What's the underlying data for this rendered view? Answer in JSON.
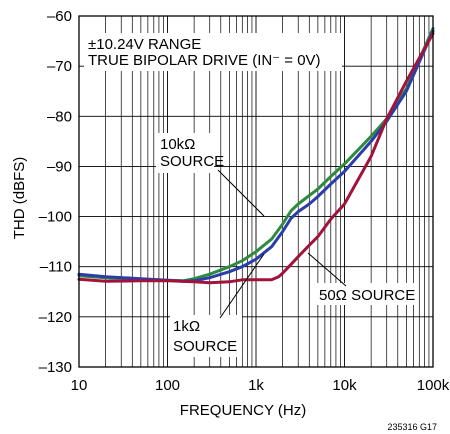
{
  "chart_data": {
    "type": "line",
    "xlabel": "FREQUENCY (Hz)",
    "ylabel": "THD (dBFS)",
    "x_scale": "log",
    "xlim": [
      10,
      100000
    ],
    "ylim": [
      -130,
      -60
    ],
    "grid": true,
    "x_ticks": [
      {
        "value": 10,
        "label": "10"
      },
      {
        "value": 100,
        "label": "100"
      },
      {
        "value": 1000,
        "label": "1k"
      },
      {
        "value": 10000,
        "label": "10k"
      },
      {
        "value": 100000,
        "label": "100k"
      }
    ],
    "y_ticks": [
      {
        "value": -60,
        "label": "–60"
      },
      {
        "value": -70,
        "label": "–70"
      },
      {
        "value": -80,
        "label": "–80"
      },
      {
        "value": -90,
        "label": "–90"
      },
      {
        "value": -100,
        "label": "–100"
      },
      {
        "value": -110,
        "label": "–110"
      },
      {
        "value": -120,
        "label": "–120"
      },
      {
        "value": -130,
        "label": "–130"
      }
    ],
    "box_text": [
      "±10.24V RANGE",
      "TRUE BIPOLAR DRIVE (IN⁻ = 0V)"
    ],
    "series": [
      {
        "color": "#2e8b3e",
        "points": [
          [
            10,
            -111.8
          ],
          [
            20,
            -112.2
          ],
          [
            50,
            -112.5
          ],
          [
            100,
            -112.7
          ],
          [
            150,
            -112.8
          ],
          [
            200,
            -112.4
          ],
          [
            300,
            -111.5
          ],
          [
            500,
            -110.0
          ],
          [
            700,
            -108.8
          ],
          [
            1000,
            -107.0
          ],
          [
            1500,
            -104.5
          ],
          [
            2000,
            -101.5
          ],
          [
            2500,
            -98.8
          ],
          [
            3000,
            -97.5
          ],
          [
            4000,
            -95.8
          ],
          [
            5000,
            -94.5
          ],
          [
            7000,
            -92.0
          ],
          [
            10000,
            -89.5
          ],
          [
            20000,
            -84.0
          ],
          [
            30000,
            -80.5
          ],
          [
            50000,
            -74.5
          ],
          [
            100000,
            -62.5
          ]
        ]
      },
      {
        "color": "#2b3ea8",
        "points": [
          [
            10,
            -111.5
          ],
          [
            20,
            -112.0
          ],
          [
            50,
            -112.4
          ],
          [
            100,
            -112.7
          ],
          [
            150,
            -112.9
          ],
          [
            200,
            -112.8
          ],
          [
            300,
            -112.2
          ],
          [
            500,
            -111.0
          ],
          [
            700,
            -110.0
          ],
          [
            1000,
            -108.5
          ],
          [
            1500,
            -106.0
          ],
          [
            2000,
            -103.0
          ],
          [
            2500,
            -100.3
          ],
          [
            3000,
            -99.0
          ],
          [
            4000,
            -97.5
          ],
          [
            5000,
            -96.0
          ],
          [
            7000,
            -93.5
          ],
          [
            10000,
            -91.0
          ],
          [
            20000,
            -85.0
          ],
          [
            30000,
            -81.0
          ],
          [
            50000,
            -75.0
          ],
          [
            100000,
            -63.0
          ]
        ]
      },
      {
        "color": "#a0143c",
        "points": [
          [
            10,
            -112.5
          ],
          [
            20,
            -112.9
          ],
          [
            50,
            -112.8
          ],
          [
            100,
            -112.8
          ],
          [
            200,
            -113.0
          ],
          [
            300,
            -113.2
          ],
          [
            500,
            -113.0
          ],
          [
            700,
            -112.6
          ],
          [
            1000,
            -112.6
          ],
          [
            1500,
            -112.6
          ],
          [
            1800,
            -112.0
          ],
          [
            2000,
            -111.3
          ],
          [
            2500,
            -109.5
          ],
          [
            3000,
            -108.0
          ],
          [
            4000,
            -105.7
          ],
          [
            5000,
            -104.0
          ],
          [
            7000,
            -100.5
          ],
          [
            10000,
            -97.5
          ],
          [
            20000,
            -88.0
          ],
          [
            30000,
            -80.5
          ],
          [
            50000,
            -73.0
          ],
          [
            100000,
            -63.5
          ]
        ]
      }
    ],
    "annotations": [
      {
        "lines": [
          "10kΩ",
          "SOURCE"
        ]
      },
      {
        "lines": [
          "1kΩ",
          "SOURCE"
        ]
      },
      {
        "lines": [
          "50Ω SOURCE"
        ]
      }
    ],
    "figure_id": "235316 G17"
  }
}
